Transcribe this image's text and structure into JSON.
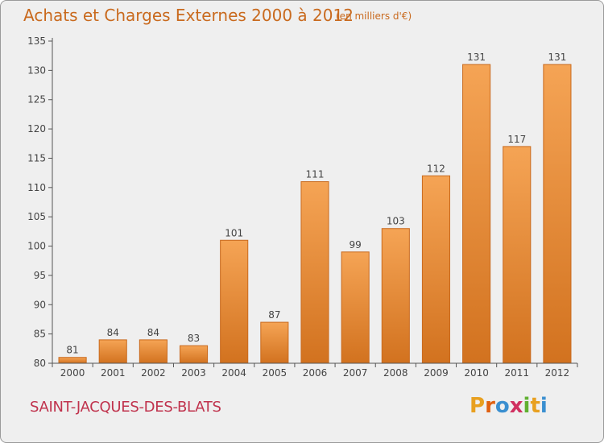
{
  "chart_data": {
    "type": "bar",
    "title": "Achats et Charges Externes 2000 à 2012",
    "subtitle": "(en milliers d'€)",
    "categories": [
      "2000",
      "2001",
      "2002",
      "2003",
      "2004",
      "2005",
      "2006",
      "2007",
      "2008",
      "2009",
      "2010",
      "2011",
      "2012"
    ],
    "values": [
      81,
      84,
      84,
      83,
      101,
      87,
      111,
      99,
      103,
      112,
      131,
      117,
      131
    ],
    "ylim": [
      80,
      135
    ],
    "yticks": [
      80,
      85,
      90,
      95,
      100,
      105,
      110,
      115,
      120,
      125,
      130,
      135
    ],
    "grid": false,
    "bar_color": "#f0973f",
    "bar_color_dark": "#c96a1e"
  },
  "footer": {
    "commune": "SAINT-JACQUES-DES-BLATS",
    "logo_letters": [
      "P",
      "r",
      "o",
      "x",
      "i",
      "t",
      "i"
    ],
    "logo_colors": [
      "#e8a020",
      "#e06010",
      "#3a8fd0",
      "#d03060",
      "#60b030",
      "#e8a020",
      "#3a8fd0"
    ]
  }
}
